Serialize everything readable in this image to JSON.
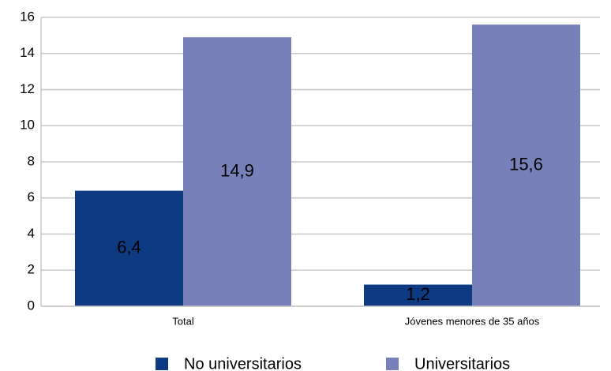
{
  "chart_data": {
    "type": "bar",
    "categories": [
      "Total",
      "Jóvenes menores de 35 años"
    ],
    "series": [
      {
        "name": "No universitarios",
        "color": "#0e3a82",
        "values": [
          6.4,
          1.2
        ],
        "value_labels": [
          "6,4",
          "1,2"
        ]
      },
      {
        "name": "Universitarios",
        "color": "#7880b9",
        "values": [
          14.9,
          15.6
        ],
        "value_labels": [
          "14,9",
          "15,6"
        ]
      }
    ],
    "ylim": [
      0,
      16
    ],
    "yticks": [
      0,
      2,
      4,
      6,
      8,
      10,
      12,
      14,
      16
    ],
    "grid": true
  }
}
